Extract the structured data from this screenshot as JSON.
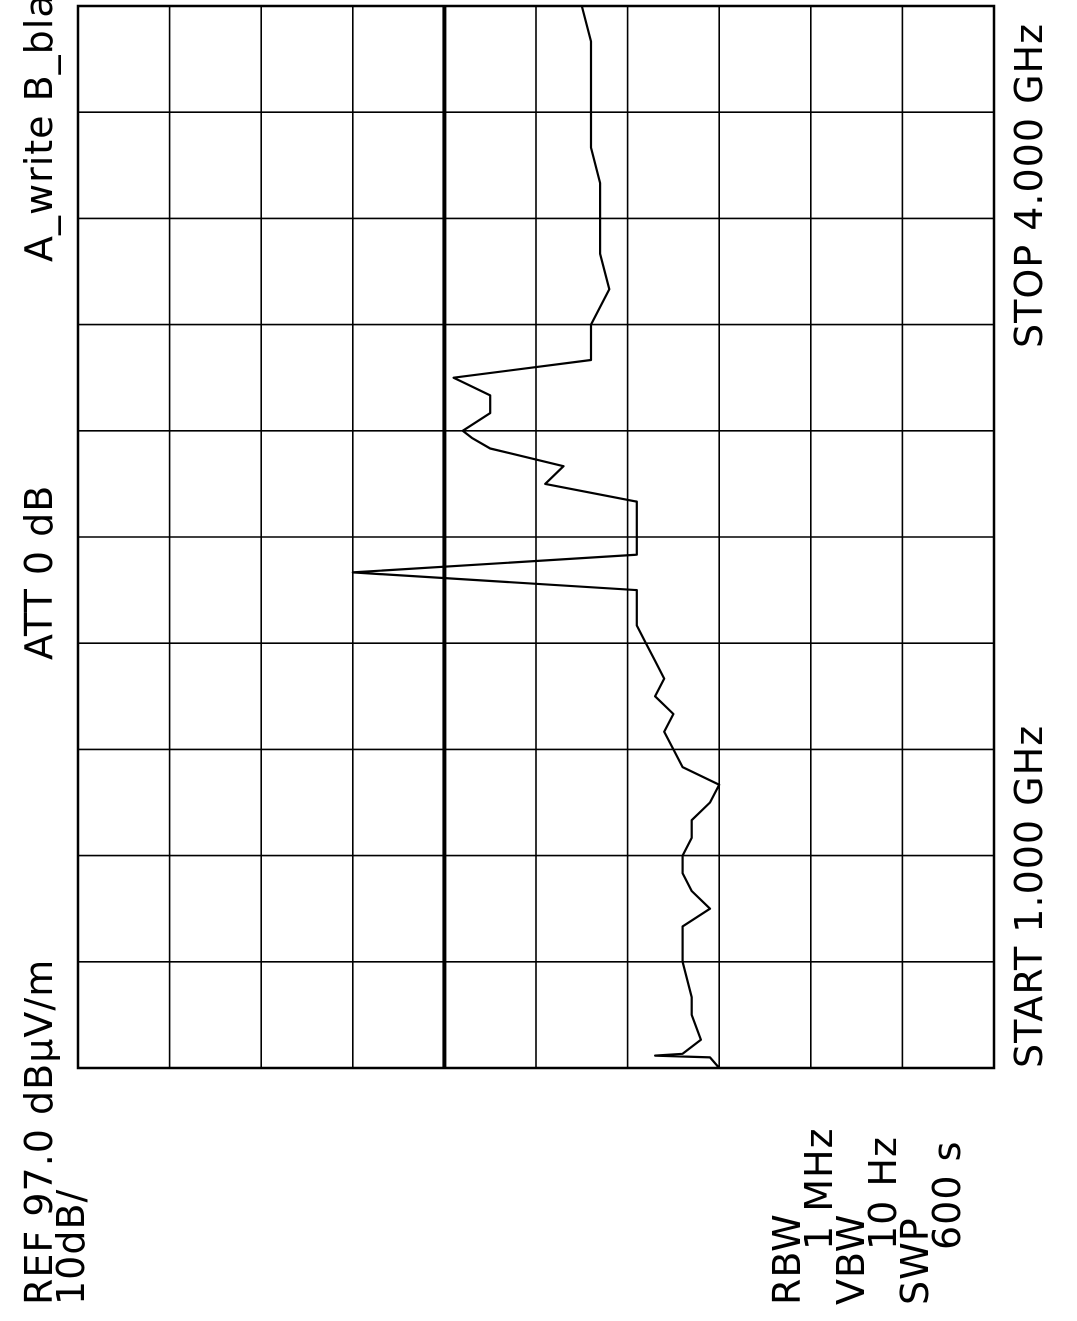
{
  "header": {
    "reference": "REF 97.0 dBμV/m",
    "scale": "10dB/",
    "attenuation": "ATT 0 dB",
    "trace_mode": "A_write B_blank"
  },
  "sweep": {
    "start": "START 1.000 GHz",
    "stop": "STOP 4.000 GHz"
  },
  "settings": {
    "rbw_label": "RBW",
    "rbw_value": "1 MHz",
    "vbw_label": "VBW",
    "vbw_value": "10 Hz",
    "swp_label": "SWP",
    "swp_value": "600 s"
  },
  "chart_data": {
    "type": "line",
    "xlabel": "",
    "ylabel": "",
    "xlim": [
      1.0,
      4.0
    ],
    "ylim": [
      -3.0,
      97.0
    ],
    "x_divisions": 10,
    "y_divisions": 10,
    "grid": true,
    "reference_line_y": 57.0,
    "series": [
      {
        "values_x": [
          1.0,
          1.03,
          1.035,
          1.04,
          1.08,
          1.15,
          1.2,
          1.3,
          1.4,
          1.45,
          1.5,
          1.55,
          1.6,
          1.65,
          1.7,
          1.75,
          1.8,
          1.85,
          1.9,
          1.95,
          2.0,
          2.05,
          2.1,
          2.15,
          2.2,
          2.25,
          2.3,
          2.35,
          2.4,
          2.45,
          2.5,
          2.55,
          2.6,
          2.65,
          2.7,
          2.75,
          2.78,
          2.8,
          2.85,
          2.9,
          2.95,
          3.0,
          3.1,
          3.2,
          3.3,
          3.4,
          3.5,
          3.6,
          3.7,
          3.8,
          3.9,
          4.0
        ],
        "values_y": [
          27,
          28,
          34,
          31,
          29,
          30,
          30,
          31,
          31,
          28,
          30,
          31,
          31,
          30,
          30,
          28,
          27,
          31,
          32,
          33,
          32,
          34,
          33,
          34,
          35,
          36,
          36,
          36,
          67,
          36,
          36,
          36,
          36,
          46,
          44,
          52,
          54,
          55,
          52,
          52,
          56,
          41,
          41,
          39,
          40,
          40,
          40,
          41,
          41,
          41,
          41,
          42
        ]
      }
    ]
  }
}
